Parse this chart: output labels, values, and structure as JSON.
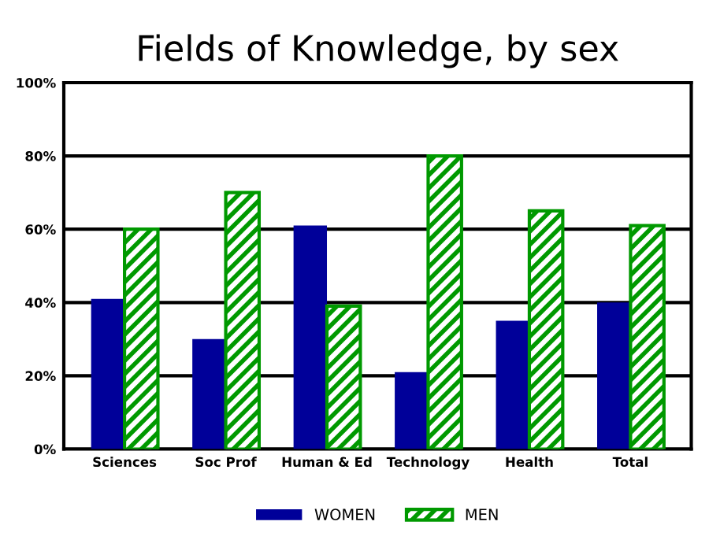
{
  "chart_data": {
    "type": "bar",
    "title": "Fields of Knowledge, by sex",
    "categories": [
      "Sciences",
      "Soc Prof",
      "Human & Ed",
      "Technology",
      "Health",
      "Total"
    ],
    "series": [
      {
        "name": "WOMEN",
        "color": "#000099",
        "values": [
          41,
          30,
          61,
          21,
          35,
          40
        ]
      },
      {
        "name": "MEN",
        "color": "#009900",
        "values": [
          60,
          70,
          39,
          80,
          65,
          61
        ]
      }
    ],
    "ylim": [
      0,
      100
    ],
    "yticks": [
      {
        "value": 0,
        "label": "0%"
      },
      {
        "value": 20,
        "label": "20%"
      },
      {
        "value": 40,
        "label": "40%"
      },
      {
        "value": 60,
        "label": "60%"
      },
      {
        "value": 80,
        "label": "80%"
      },
      {
        "value": 100,
        "label": "100%"
      }
    ],
    "grid": "y",
    "legend": "bottom"
  }
}
